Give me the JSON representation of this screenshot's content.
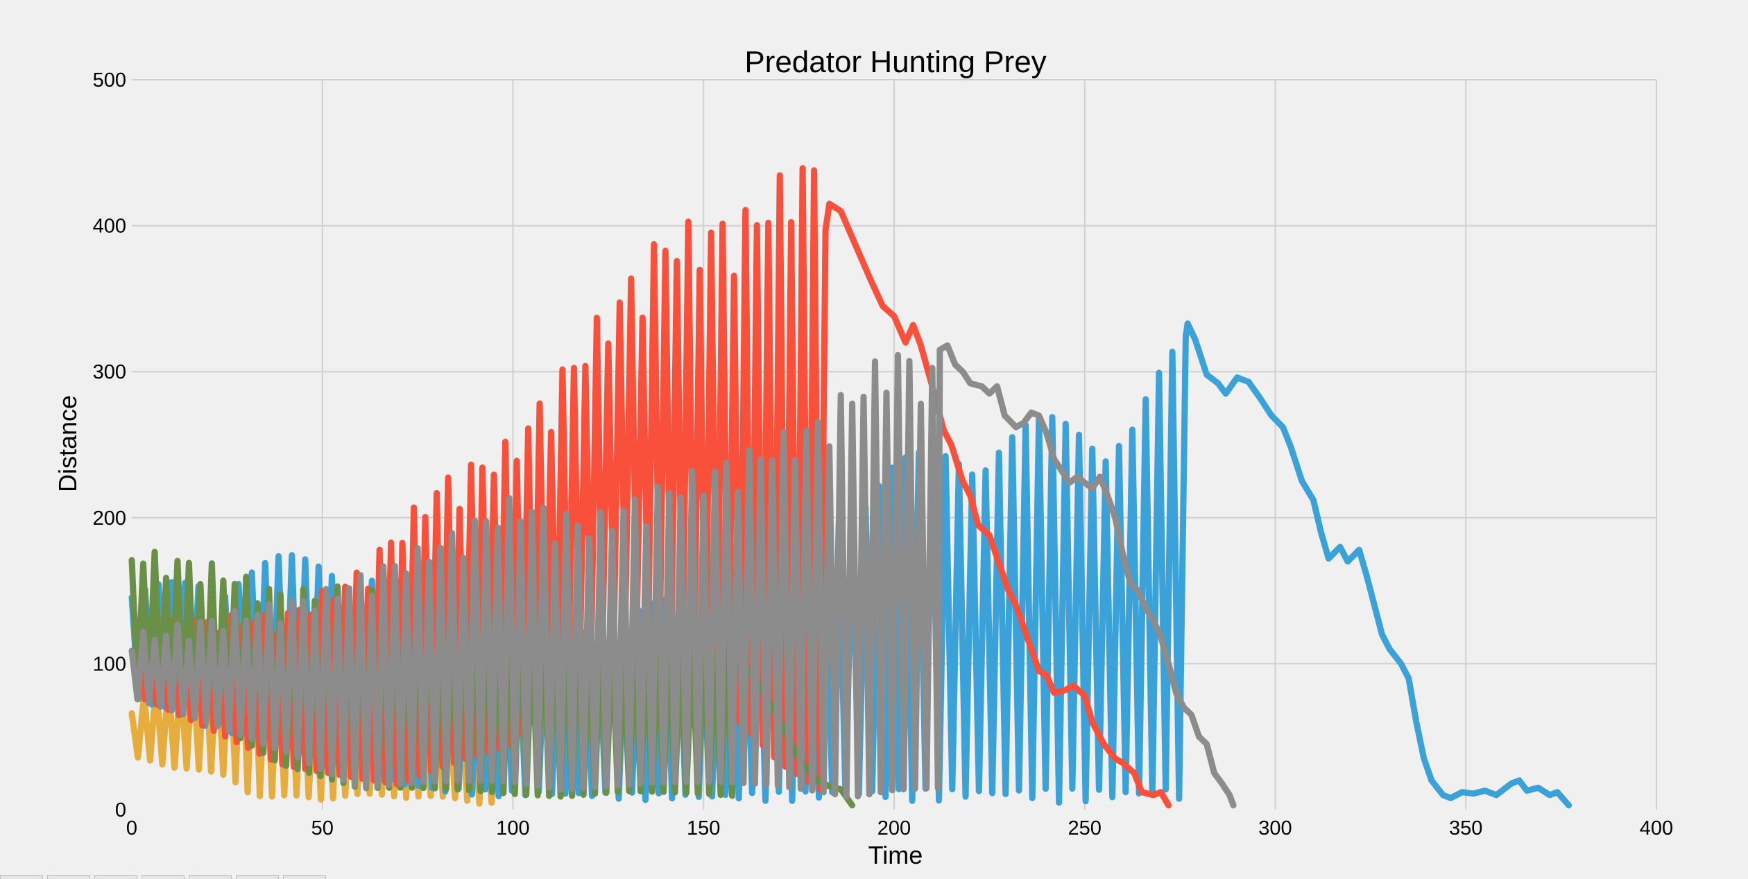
{
  "chart_data": {
    "type": "line",
    "title": "Predator Hunting Prey",
    "xlabel": "Time",
    "ylabel": "Distance",
    "xlim": [
      0,
      400
    ],
    "ylim": [
      0,
      500
    ],
    "xticks": [
      0,
      50,
      100,
      150,
      200,
      250,
      300,
      350,
      400
    ],
    "yticks": [
      0,
      100,
      200,
      300,
      400,
      500
    ],
    "grid": true,
    "legend": false,
    "series": [
      {
        "color": "#e6ac3d",
        "segments": [
          {
            "x_start": 0,
            "x_end": 97,
            "period": 3.2,
            "high": [
              [
                0,
                75
              ],
              [
                30,
                130
              ],
              [
                50,
                105
              ],
              [
                70,
                95
              ],
              [
                97,
                70
              ]
            ],
            "low": [
              [
                0,
                35
              ],
              [
                25,
                20
              ],
              [
                35,
                5
              ],
              [
                70,
                8
              ],
              [
                97,
                3
              ]
            ]
          }
        ]
      },
      {
        "color": "#3aa2d9",
        "segments": [
          {
            "x_start": 0,
            "x_end": 277,
            "period": 3.5,
            "high": [
              [
                0,
                150
              ],
              [
                40,
                175
              ],
              [
                60,
                170
              ],
              [
                100,
                120
              ],
              [
                150,
                150
              ],
              [
                200,
                240
              ],
              [
                240,
                270
              ],
              [
                262,
                270
              ],
              [
                277,
                330
              ]
            ],
            "low": [
              [
                0,
                75
              ],
              [
                60,
                20
              ],
              [
                80,
                10
              ],
              [
                150,
                5
              ],
              [
                200,
                5
              ],
              [
                277,
                3
              ]
            ]
          },
          {
            "x_start": 277,
            "x_end": 377,
            "points": [
              [
                277,
                333
              ],
              [
                279,
                322
              ],
              [
                282,
                298
              ],
              [
                285,
                292
              ],
              [
                287,
                285
              ],
              [
                290,
                296
              ],
              [
                293,
                293
              ],
              [
                296,
                282
              ],
              [
                299,
                270
              ],
              [
                302,
                262
              ],
              [
                304,
                249
              ],
              [
                307,
                225
              ],
              [
                310,
                212
              ],
              [
                312,
                190
              ],
              [
                314,
                172
              ],
              [
                317,
                180
              ],
              [
                319,
                170
              ],
              [
                322,
                178
              ],
              [
                324,
                160
              ],
              [
                326,
                140
              ],
              [
                328,
                120
              ],
              [
                330,
                110
              ],
              [
                333,
                100
              ],
              [
                335,
                90
              ],
              [
                337,
                60
              ],
              [
                339,
                35
              ],
              [
                341,
                20
              ],
              [
                344,
                10
              ],
              [
                346,
                8
              ],
              [
                349,
                12
              ],
              [
                352,
                11
              ],
              [
                355,
                13
              ],
              [
                358,
                10
              ],
              [
                362,
                18
              ],
              [
                364,
                20
              ],
              [
                366,
                13
              ],
              [
                369,
                15
              ],
              [
                372,
                10
              ],
              [
                374,
                12
              ],
              [
                377,
                3
              ]
            ]
          }
        ]
      },
      {
        "color": "#f8503a",
        "segments": [
          {
            "x_start": 2,
            "x_end": 183,
            "period": 3.0,
            "high": [
              [
                2,
                130
              ],
              [
                40,
                135
              ],
              [
                60,
                165
              ],
              [
                80,
                225
              ],
              [
                100,
                255
              ],
              [
                120,
                330
              ],
              [
                140,
                400
              ],
              [
                160,
                410
              ],
              [
                176,
                450
              ],
              [
                183,
                440
              ]
            ],
            "low": [
              [
                2,
                75
              ],
              [
                40,
                30
              ],
              [
                70,
                10
              ],
              [
                100,
                40
              ],
              [
                130,
                130
              ],
              [
                150,
                70
              ],
              [
                170,
                20
              ],
              [
                183,
                5
              ]
            ]
          },
          {
            "x_start": 183,
            "x_end": 272,
            "points": [
              [
                183,
                415
              ],
              [
                186,
                410
              ],
              [
                188,
                398
              ],
              [
                191,
                380
              ],
              [
                194,
                362
              ],
              [
                197,
                345
              ],
              [
                200,
                338
              ],
              [
                203,
                320
              ],
              [
                205,
                332
              ],
              [
                207,
                318
              ],
              [
                210,
                290
              ],
              [
                213,
                260
              ],
              [
                215,
                250
              ],
              [
                218,
                225
              ],
              [
                220,
                215
              ],
              [
                222,
                195
              ],
              [
                225,
                188
              ],
              [
                228,
                165
              ],
              [
                230,
                150
              ],
              [
                232,
                140
              ],
              [
                234,
                125
              ],
              [
                236,
                110
              ],
              [
                238,
                95
              ],
              [
                240,
                92
              ],
              [
                242,
                80
              ],
              [
                245,
                82
              ],
              [
                247,
                85
              ],
              [
                250,
                78
              ],
              [
                252,
                60
              ],
              [
                255,
                45
              ],
              [
                258,
                35
              ],
              [
                260,
                32
              ],
              [
                263,
                25
              ],
              [
                265,
                12
              ],
              [
                268,
                10
              ],
              [
                270,
                12
              ],
              [
                272,
                3
              ]
            ]
          }
        ]
      },
      {
        "color": "#6a8f47",
        "segments": [
          {
            "x_start": 0,
            "x_end": 158,
            "period": 3.0,
            "high": [
              [
                0,
                180
              ],
              [
                20,
                170
              ],
              [
                40,
                150
              ],
              [
                60,
                155
              ],
              [
                80,
                150
              ],
              [
                100,
                140
              ],
              [
                130,
                115
              ],
              [
                158,
                120
              ]
            ],
            "low": [
              [
                0,
                80
              ],
              [
                20,
                60
              ],
              [
                40,
                30
              ],
              [
                60,
                10
              ],
              [
                100,
                8
              ],
              [
                130,
                10
              ],
              [
                158,
                5
              ]
            ]
          },
          {
            "x_start": 158,
            "x_end": 189,
            "points": [
              [
                158,
                100
              ],
              [
                162,
                95
              ],
              [
                166,
                80
              ],
              [
                170,
                60
              ],
              [
                174,
                40
              ],
              [
                177,
                28
              ],
              [
                180,
                20
              ],
              [
                183,
                16
              ],
              [
                186,
                14
              ],
              [
                189,
                3
              ]
            ]
          }
        ]
      },
      {
        "color": "#8c8c8c",
        "segments": [
          {
            "x_start": 0,
            "x_end": 212,
            "period": 3.0,
            "high": [
              [
                0,
                120
              ],
              [
                50,
                150
              ],
              [
                80,
                185
              ],
              [
                100,
                215
              ],
              [
                120,
                200
              ],
              [
                140,
                225
              ],
              [
                160,
                245
              ],
              [
                180,
                270
              ],
              [
                200,
                320
              ],
              [
                212,
                300
              ]
            ],
            "low": [
              [
                0,
                75
              ],
              [
                40,
                40
              ],
              [
                60,
                10
              ],
              [
                100,
                15
              ],
              [
                150,
                10
              ],
              [
                200,
                8
              ],
              [
                212,
                5
              ]
            ]
          },
          {
            "x_start": 212,
            "x_end": 289,
            "points": [
              [
                212,
                315
              ],
              [
                214,
                318
              ],
              [
                216,
                305
              ],
              [
                218,
                300
              ],
              [
                220,
                292
              ],
              [
                223,
                290
              ],
              [
                225,
                285
              ],
              [
                227,
                290
              ],
              [
                229,
                270
              ],
              [
                232,
                262
              ],
              [
                234,
                265
              ],
              [
                236,
                272
              ],
              [
                238,
                270
              ],
              [
                240,
                258
              ],
              [
                242,
                240
              ],
              [
                244,
                232
              ],
              [
                246,
                224
              ],
              [
                248,
                228
              ],
              [
                250,
                224
              ],
              [
                252,
                220
              ],
              [
                254,
                228
              ],
              [
                256,
                215
              ],
              [
                258,
                200
              ],
              [
                260,
                175
              ],
              [
                262,
                155
              ],
              [
                264,
                150
              ],
              [
                266,
                138
              ],
              [
                268,
                130
              ],
              [
                270,
                118
              ],
              [
                272,
                100
              ],
              [
                274,
                80
              ],
              [
                276,
                70
              ],
              [
                278,
                65
              ],
              [
                280,
                50
              ],
              [
                282,
                45
              ],
              [
                284,
                25
              ],
              [
                286,
                18
              ],
              [
                288,
                10
              ],
              [
                289,
                3
              ]
            ]
          }
        ]
      }
    ]
  }
}
